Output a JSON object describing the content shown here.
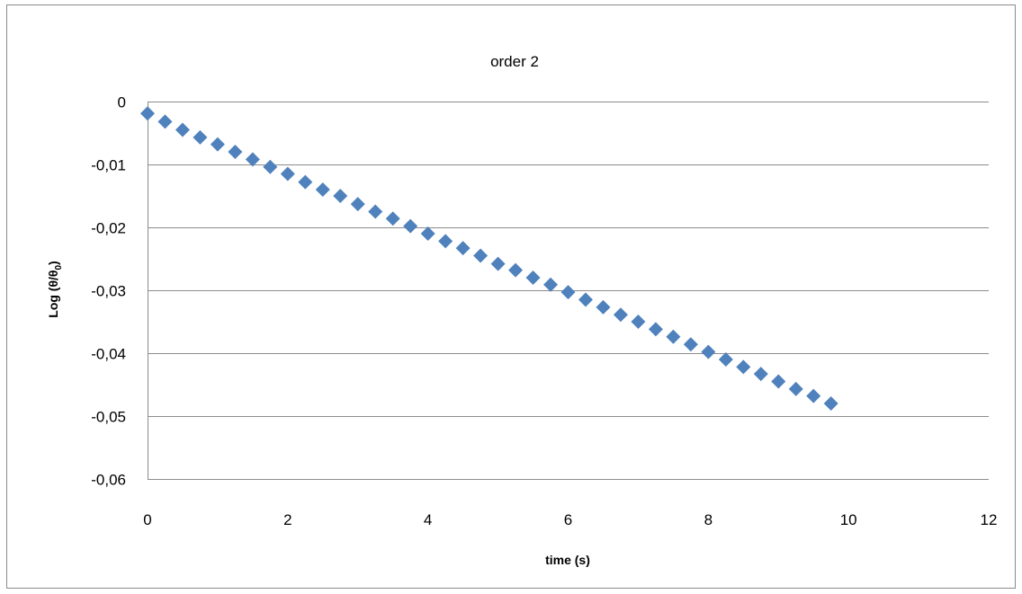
{
  "chart_data": {
    "type": "scatter",
    "title": "order 2",
    "xlabel": "time (s)",
    "ylabel_parts": {
      "base": "Log (θ/θ",
      "sub": "0",
      "close": ")"
    },
    "xlim": [
      0,
      12
    ],
    "ylim": [
      -0.06,
      0
    ],
    "xticks": [
      "0",
      "2",
      "4",
      "6",
      "8",
      "10",
      "12"
    ],
    "yticks": [
      "0",
      "-0,01",
      "-0,02",
      "-0,03",
      "-0,04",
      "-0,05",
      "-0,06"
    ],
    "xtick_values": [
      0,
      2,
      4,
      6,
      8,
      10,
      12
    ],
    "ytick_values": [
      0,
      -0.01,
      -0.02,
      -0.03,
      -0.04,
      -0.05,
      -0.06
    ],
    "grid": true,
    "series": [
      {
        "color": "#4f81bd",
        "marker": "diamond",
        "x": [
          0,
          0.25,
          0.5,
          0.75,
          1,
          1.25,
          1.5,
          1.75,
          2,
          2.25,
          2.5,
          2.75,
          3,
          3.25,
          3.5,
          3.75,
          4,
          4.25,
          4.5,
          4.75,
          5,
          5.25,
          5.5,
          5.75,
          6,
          6.25,
          6.5,
          6.75,
          7,
          7.25,
          7.5,
          7.75,
          8,
          8.25,
          8.5,
          8.75,
          9,
          9.25,
          9.5,
          9.75
        ],
        "y": [
          -0.0019,
          -0.0032,
          -0.0045,
          -0.0057,
          -0.0068,
          -0.008,
          -0.0092,
          -0.0104,
          -0.0115,
          -0.0128,
          -0.014,
          -0.015,
          -0.0163,
          -0.0175,
          -0.0186,
          -0.0198,
          -0.021,
          -0.0222,
          -0.0233,
          -0.0245,
          -0.0258,
          -0.0268,
          -0.028,
          -0.0291,
          -0.0303,
          -0.0315,
          -0.0327,
          -0.0339,
          -0.035,
          -0.0362,
          -0.0374,
          -0.0386,
          -0.0398,
          -0.041,
          -0.0422,
          -0.0433,
          -0.0445,
          -0.0457,
          -0.0468,
          -0.048
        ]
      }
    ]
  }
}
